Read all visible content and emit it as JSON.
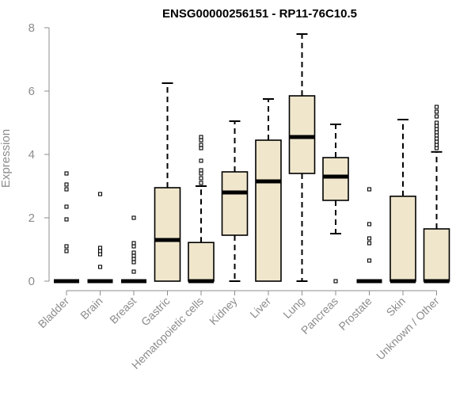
{
  "chart_data": {
    "type": "boxplot",
    "title": "ENSG00000256151 - RP11-76C10.5",
    "xlabel": "",
    "ylabel": "Expression",
    "ylim": [
      0,
      8
    ],
    "yticks": [
      0,
      2,
      4,
      6,
      8
    ],
    "grid": false,
    "colors": {
      "box_fill": "#efe6cc",
      "box_stroke": "#000000",
      "axis": "#8c8c8c",
      "text": "#8c8c8c"
    },
    "categories": [
      "Bladder",
      "Brain",
      "Breast",
      "Gastric",
      "Hematopoietic cells",
      "Kidney",
      "Liver",
      "Lung",
      "Pancreas",
      "Prostate",
      "Skin",
      "Unknown / Other"
    ],
    "boxes": [
      {
        "q1": 0,
        "median": 0,
        "q3": 0,
        "whisker_low": 0,
        "whisker_high": 0,
        "outliers": [
          0.95,
          1.1,
          1.95,
          2.35,
          2.9,
          3.05,
          3.4
        ]
      },
      {
        "q1": 0,
        "median": 0,
        "q3": 0,
        "whisker_low": 0,
        "whisker_high": 0,
        "outliers": [
          0.45,
          0.85,
          0.95,
          1.05,
          2.75
        ]
      },
      {
        "q1": 0,
        "median": 0,
        "q3": 0,
        "whisker_low": 0,
        "whisker_high": 0,
        "outliers": [
          0.3,
          0.6,
          0.7,
          0.8,
          0.9,
          1.1,
          1.2,
          2.0
        ]
      },
      {
        "q1": 0,
        "median": 1.3,
        "q3": 2.95,
        "whisker_low": 0,
        "whisker_high": 6.25,
        "outliers": []
      },
      {
        "q1": 0,
        "median": 0,
        "q3": 1.22,
        "whisker_low": 0,
        "whisker_high": 3.0,
        "outliers": [
          3.1,
          3.25,
          3.4,
          3.5,
          3.8,
          4.2,
          4.3,
          4.45,
          4.55
        ]
      },
      {
        "q1": 1.45,
        "median": 2.8,
        "q3": 3.45,
        "whisker_low": 0,
        "whisker_high": 5.05,
        "outliers": []
      },
      {
        "q1": 0,
        "median": 3.15,
        "q3": 4.45,
        "whisker_low": 0,
        "whisker_high": 5.75,
        "outliers": []
      },
      {
        "q1": 3.4,
        "median": 4.55,
        "q3": 5.85,
        "whisker_low": 0,
        "whisker_high": 7.8,
        "outliers": []
      },
      {
        "q1": 2.55,
        "median": 3.3,
        "q3": 3.9,
        "whisker_low": 1.5,
        "whisker_high": 4.95,
        "outliers": [
          0.0
        ]
      },
      {
        "q1": 0,
        "median": 0,
        "q3": 0,
        "whisker_low": 0,
        "whisker_high": 0,
        "outliers": [
          0.65,
          1.2,
          1.35,
          1.8,
          2.9
        ]
      },
      {
        "q1": 0,
        "median": 0,
        "q3": 2.68,
        "whisker_low": 0,
        "whisker_high": 5.1,
        "outliers": []
      },
      {
        "q1": 0,
        "median": 0,
        "q3": 1.65,
        "whisker_low": 0,
        "whisker_high": 4.08,
        "outliers": [
          4.2,
          4.3,
          4.4,
          4.5,
          4.6,
          4.7,
          4.8,
          4.9,
          5.0,
          5.2,
          5.35,
          5.5
        ]
      }
    ]
  }
}
